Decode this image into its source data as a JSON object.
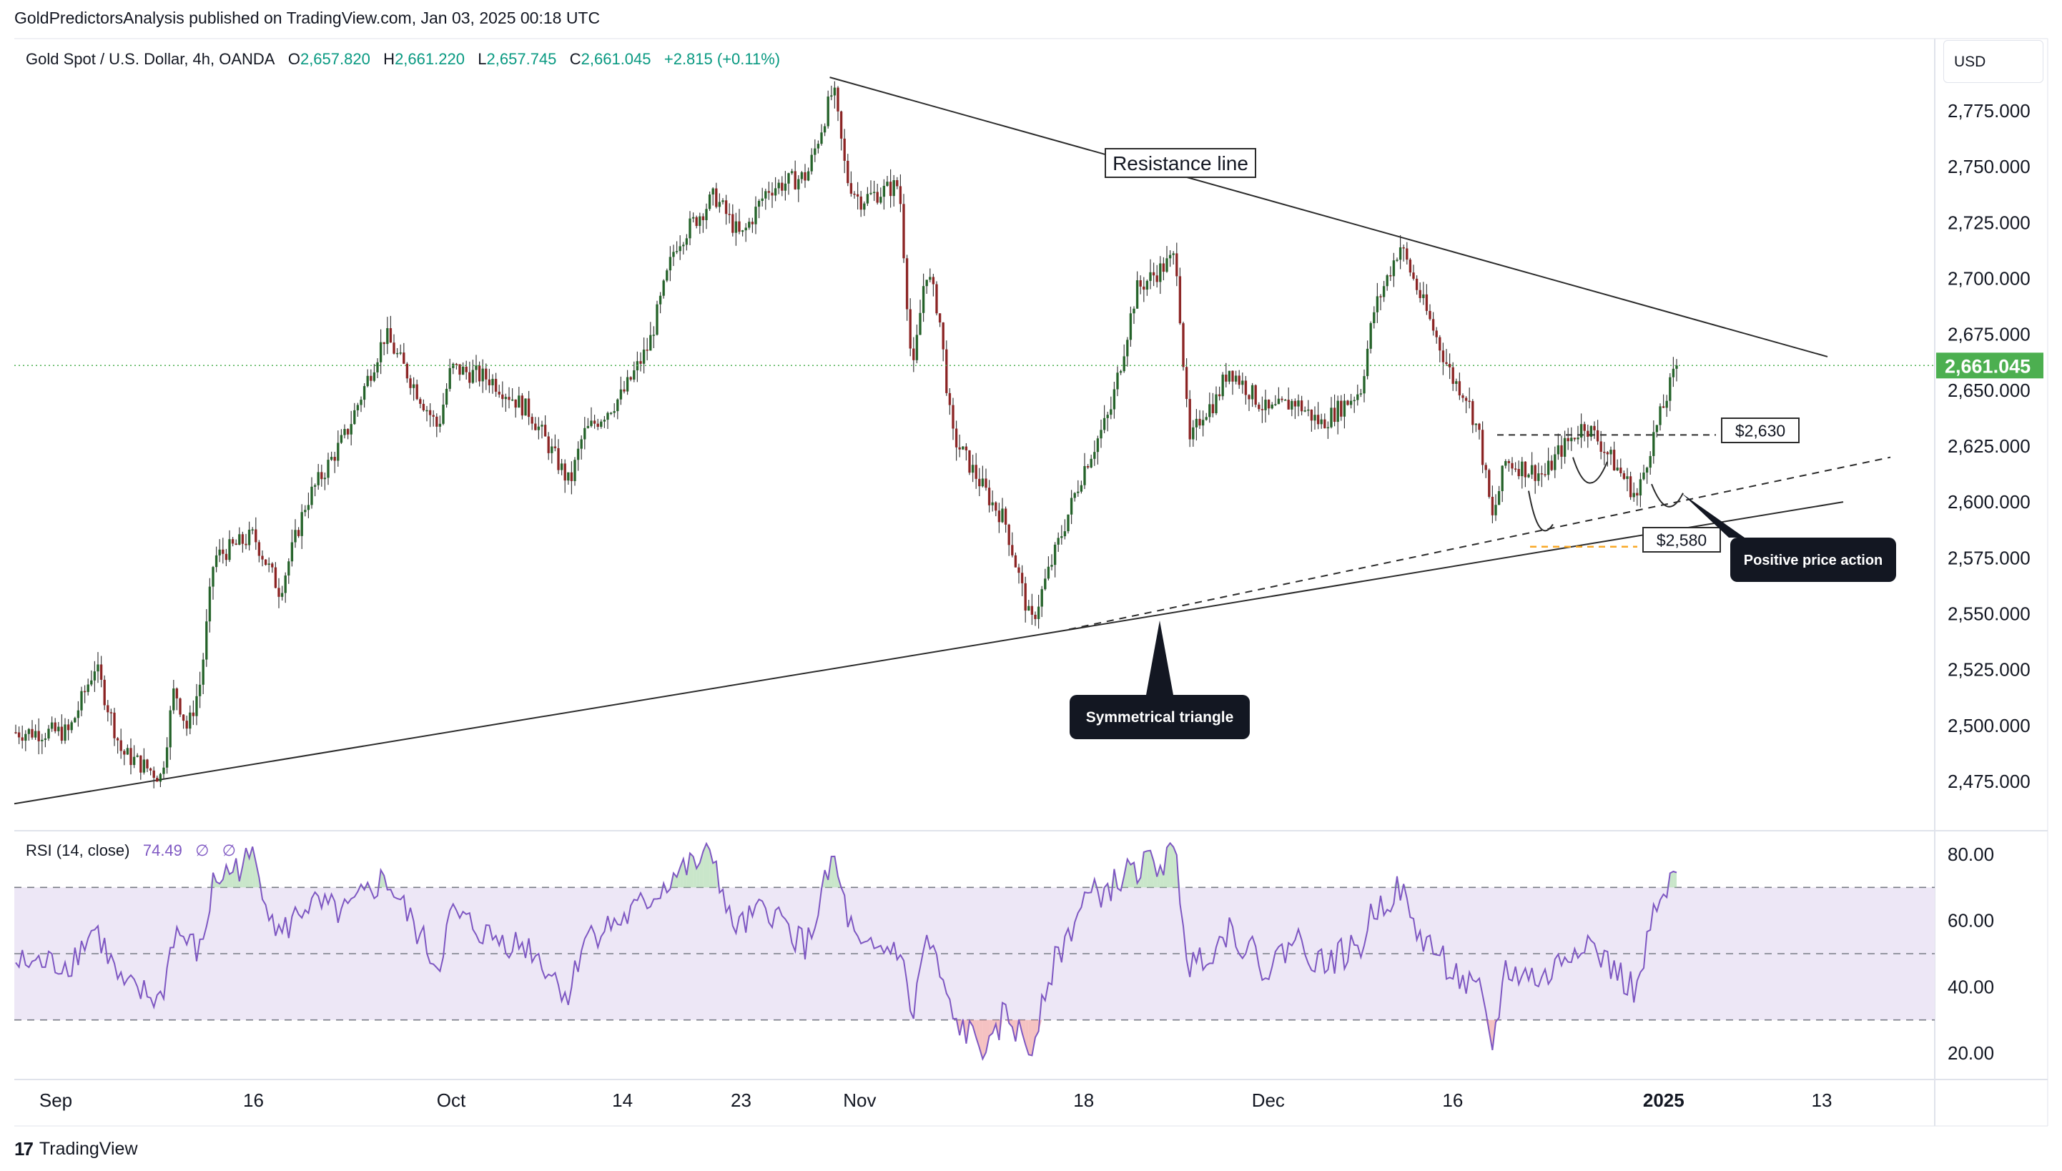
{
  "header": {
    "publisher": "GoldPredictorsAnalysis published on TradingView.com, Jan 03, 2025 00:18 UTC"
  },
  "legend": {
    "symbol": "Gold Spot / U.S. Dollar, 4h, OANDA",
    "open_label": "O",
    "open": "2,657.820",
    "high_label": "H",
    "high": "2,661.220",
    "low_label": "L",
    "low": "2,657.745",
    "close_label": "C",
    "close": "2,661.045",
    "change": "+2.815 (+0.11%)"
  },
  "currency": "USD",
  "rsi_legend": {
    "title": "RSI (14, close)",
    "value": "74.49",
    "extra1": "∅",
    "extra2": "∅"
  },
  "footer": {
    "brand": "TradingView"
  },
  "colors": {
    "up": "#089981",
    "down": "#f23645",
    "candle": "#2e2e2e",
    "rsi": "#7e57c2",
    "rsi_band": "#ede7f6",
    "last_price": "#4caf50",
    "callout": "#131722"
  },
  "chart_data": [
    {
      "type": "candlestick",
      "description": "XAU/USD 4h",
      "yaxis": {
        "ticks": [
          "2,775.000",
          "2,750.000",
          "2,725.000",
          "2,700.000",
          "2,675.000",
          "2,650.000",
          "2,625.000",
          "2,600.000",
          "2,575.000",
          "2,550.000",
          "2,525.000",
          "2,500.000",
          "2,475.000"
        ],
        "tick_values": [
          2775,
          2750,
          2725,
          2700,
          2675,
          2650,
          2625,
          2600,
          2575,
          2550,
          2525,
          2500,
          2475
        ],
        "range": [
          2455,
          2795
        ]
      },
      "xaxis": {
        "ticks": [
          "Sep",
          "16",
          "Oct",
          "14",
          "23",
          "Nov",
          "18",
          "Dec",
          "16",
          "2025",
          "13"
        ]
      },
      "last_price": {
        "value": 2661.045,
        "label": "2,661.045"
      },
      "price_path": [
        [
          "Sep 2",
          2497
        ],
        [
          "Sep 4",
          2527
        ],
        [
          "Sep 6",
          2488
        ],
        [
          "Sep 9",
          2477
        ],
        [
          "Sep 10",
          2517
        ],
        [
          "Sep 11",
          2498
        ],
        [
          "Sep 12",
          2520
        ],
        [
          "Sep 13",
          2575
        ],
        [
          "Sep 16",
          2585
        ],
        [
          "Sep 18",
          2560
        ],
        [
          "Sep 20",
          2600
        ],
        [
          "Sep 23",
          2630
        ],
        [
          "Sep 26",
          2675
        ],
        [
          "Sep 30",
          2633
        ],
        [
          "Oct 1",
          2660
        ],
        [
          "Oct 4",
          2655
        ],
        [
          "Oct 7",
          2640
        ],
        [
          "Oct 10",
          2608
        ],
        [
          "Oct 11",
          2630
        ],
        [
          "Oct 14",
          2648
        ],
        [
          "Oct 16",
          2670
        ],
        [
          "Oct 18",
          2715
        ],
        [
          "Oct 21",
          2737
        ],
        [
          "Oct 23",
          2718
        ],
        [
          "Oct 25",
          2740
        ],
        [
          "Oct 28",
          2746
        ],
        [
          "Oct 30",
          2785
        ],
        [
          "Oct 31",
          2745
        ],
        [
          "Nov 1",
          2735
        ],
        [
          "Nov 4",
          2742
        ],
        [
          "Nov 5",
          2655
        ],
        [
          "Nov 6",
          2705
        ],
        [
          "Nov 7",
          2685
        ],
        [
          "Nov 8",
          2630
        ],
        [
          "Nov 11",
          2600
        ],
        [
          "Nov 12",
          2592
        ],
        [
          "Nov 14",
          2545
        ],
        [
          "Nov 15",
          2563
        ],
        [
          "Nov 18",
          2615
        ],
        [
          "Nov 20",
          2640
        ],
        [
          "Nov 22",
          2695
        ],
        [
          "Nov 25",
          2710
        ],
        [
          "Nov 26",
          2625
        ],
        [
          "Nov 27",
          2640
        ],
        [
          "Nov 28",
          2645
        ],
        [
          "Nov 29",
          2660
        ],
        [
          "Dec 2",
          2640
        ],
        [
          "Dec 4",
          2645
        ],
        [
          "Dec 6",
          2635
        ],
        [
          "Dec 9",
          2650
        ],
        [
          "Dec 10",
          2685
        ],
        [
          "Dec 12",
          2715
        ],
        [
          "Dec 13",
          2700
        ],
        [
          "Dec 16",
          2655
        ],
        [
          "Dec 17",
          2648
        ],
        [
          "Dec 18",
          2630
        ],
        [
          "Dec 19",
          2592
        ],
        [
          "Dec 20",
          2618
        ],
        [
          "Dec 23",
          2612
        ],
        [
          "Dec 24",
          2622
        ],
        [
          "Dec 26",
          2635
        ],
        [
          "Dec 27",
          2628
        ],
        [
          "Dec 30",
          2602
        ],
        [
          "Dec 31",
          2625
        ],
        [
          "Jan 2",
          2661
        ]
      ]
    },
    {
      "type": "line",
      "description": "RSI (14, close)",
      "yaxis": {
        "ticks": [
          "80.00",
          "60.00",
          "40.00",
          "20.00"
        ],
        "tick_values": [
          80,
          60,
          40,
          20
        ],
        "range": [
          12,
          86
        ]
      },
      "levels": [
        70,
        50,
        30
      ],
      "last_value": 74.49,
      "rsi_path": [
        [
          "Sep 2",
          47
        ],
        [
          "Sep 4",
          58
        ],
        [
          "Sep 6",
          40
        ],
        [
          "Sep 9",
          36
        ],
        [
          "Sep 10",
          57
        ],
        [
          "Sep 12",
          50
        ],
        [
          "Sep 13",
          72
        ],
        [
          "Sep 16",
          79
        ],
        [
          "Sep 18",
          55
        ],
        [
          "Sep 20",
          65
        ],
        [
          "Sep 23",
          62
        ],
        [
          "Sep 26",
          73
        ],
        [
          "Sep 30",
          46
        ],
        [
          "Oct 1",
          62
        ],
        [
          "Oct 4",
          55
        ],
        [
          "Oct 7",
          52
        ],
        [
          "Oct 10",
          37
        ],
        [
          "Oct 11",
          55
        ],
        [
          "Oct 14",
          60
        ],
        [
          "Oct 16",
          66
        ],
        [
          "Oct 18",
          74
        ],
        [
          "Oct 21",
          80
        ],
        [
          "Oct 22",
          60
        ],
        [
          "Oct 23",
          58
        ],
        [
          "Oct 25",
          64
        ],
        [
          "Oct 28",
          52
        ],
        [
          "Oct 30",
          79
        ],
        [
          "Oct 31",
          62
        ],
        [
          "Nov 1",
          50
        ],
        [
          "Nov 4",
          52
        ],
        [
          "Nov 5",
          30
        ],
        [
          "Nov 6",
          55
        ],
        [
          "Nov 7",
          45
        ],
        [
          "Nov 8",
          30
        ],
        [
          "Nov 11",
          20
        ],
        [
          "Nov 12",
          33
        ],
        [
          "Nov 14",
          20
        ],
        [
          "Nov 15",
          40
        ],
        [
          "Nov 18",
          66
        ],
        [
          "Nov 20",
          70
        ],
        [
          "Nov 22",
          76
        ],
        [
          "Nov 25",
          79
        ],
        [
          "Nov 26",
          45
        ],
        [
          "Nov 27",
          50
        ],
        [
          "Nov 28",
          52
        ],
        [
          "Nov 29",
          58
        ],
        [
          "Dec 2",
          45
        ],
        [
          "Dec 4",
          55
        ],
        [
          "Dec 6",
          47
        ],
        [
          "Dec 9",
          52
        ],
        [
          "Dec 10",
          63
        ],
        [
          "Dec 12",
          70
        ],
        [
          "Dec 13",
          58
        ],
        [
          "Dec 16",
          45
        ],
        [
          "Dec 17",
          40
        ],
        [
          "Dec 18",
          38
        ],
        [
          "Dec 19",
          22
        ],
        [
          "Dec 20",
          45
        ],
        [
          "Dec 23",
          42
        ],
        [
          "Dec 24",
          47
        ],
        [
          "Dec 26",
          55
        ],
        [
          "Dec 27",
          50
        ],
        [
          "Dec 30",
          38
        ],
        [
          "Dec 31",
          58
        ],
        [
          "Jan 2",
          74.49
        ]
      ]
    }
  ],
  "annotations": {
    "resistance_label": "Resistance line",
    "level_2630": "$2,630",
    "level_2580": "$2,580",
    "positive_callout": "Positive price action",
    "triangle_callout": "Symmetrical triangle"
  }
}
